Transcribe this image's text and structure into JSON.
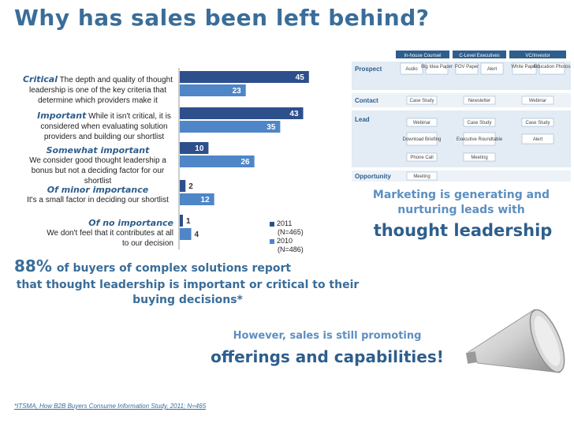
{
  "title": "Why has sales been left behind?",
  "categories": [
    {
      "heading": "Critical",
      "text": "The depth and quality of thought leadership is one of the key criteria that determine which providers make it"
    },
    {
      "heading": "Important",
      "text": "While it isn't critical, it is considered when evaluating solution providers and building our shortlist"
    },
    {
      "heading": "Somewhat important",
      "text": "We consider good thought leadership a bonus but not a deciding factor for our shortlist"
    },
    {
      "heading": "Of minor importance",
      "text": "It's a small factor in deciding our shortlist"
    },
    {
      "heading": "Of no importance",
      "text": "We don't feel that it contributes at all to our decision"
    }
  ],
  "chart_data": {
    "type": "bar",
    "orientation": "horizontal",
    "categories": [
      "Critical",
      "Important",
      "Somewhat important",
      "Of minor importance",
      "Of no importance"
    ],
    "series": [
      {
        "name": "2011 (N=465)",
        "values": [
          45,
          43,
          10,
          2,
          1
        ]
      },
      {
        "name": "2010 (N=486)",
        "values": [
          23,
          35,
          26,
          12,
          4
        ]
      }
    ],
    "xlim": [
      0,
      50
    ],
    "grid": false,
    "legend": "right"
  },
  "legend": {
    "items": [
      {
        "label_line1": "2011",
        "label_line2": "(N=465)"
      },
      {
        "label_line1": "2010",
        "label_line2": "(N=486)"
      }
    ]
  },
  "headline": {
    "pct": "88%",
    "rest": "of buyers of complex solutions report",
    "continuation": "that thought leadership is important or critical to their buying decisions*"
  },
  "marketing": {
    "line": "Marketing is generating and nurturing leads with",
    "emphasis": "thought leadership"
  },
  "sales": {
    "line": "However, sales is still promoting",
    "emphasis": "offerings and capabilities!"
  },
  "footnote": "*ITSMA, How B2B Buyers Consume Information Study, 2011; N=465",
  "diagram": {
    "columns": [
      "In-house Counsel",
      "C-Level Executives",
      "VC/Investor"
    ],
    "rows": [
      "Prospect",
      "Contact",
      "Lead",
      "Opportunity"
    ],
    "cells": [
      "Audio",
      "Big Idea Paper",
      "POV Paper",
      "Alert",
      "White Paper",
      "Education Photos",
      "Case Study",
      "Newsletter",
      "Webinar",
      "Webinar",
      "Case Study",
      "Case Study",
      "Download Briefing",
      "Executive Roundtable",
      "Alert",
      "Phone Call",
      "Meeting",
      "Meeting"
    ]
  },
  "colors": {
    "bar_2011": "#2d4f8c",
    "bar_2010": "#4e86c8",
    "accent": "#3a6d99"
  }
}
